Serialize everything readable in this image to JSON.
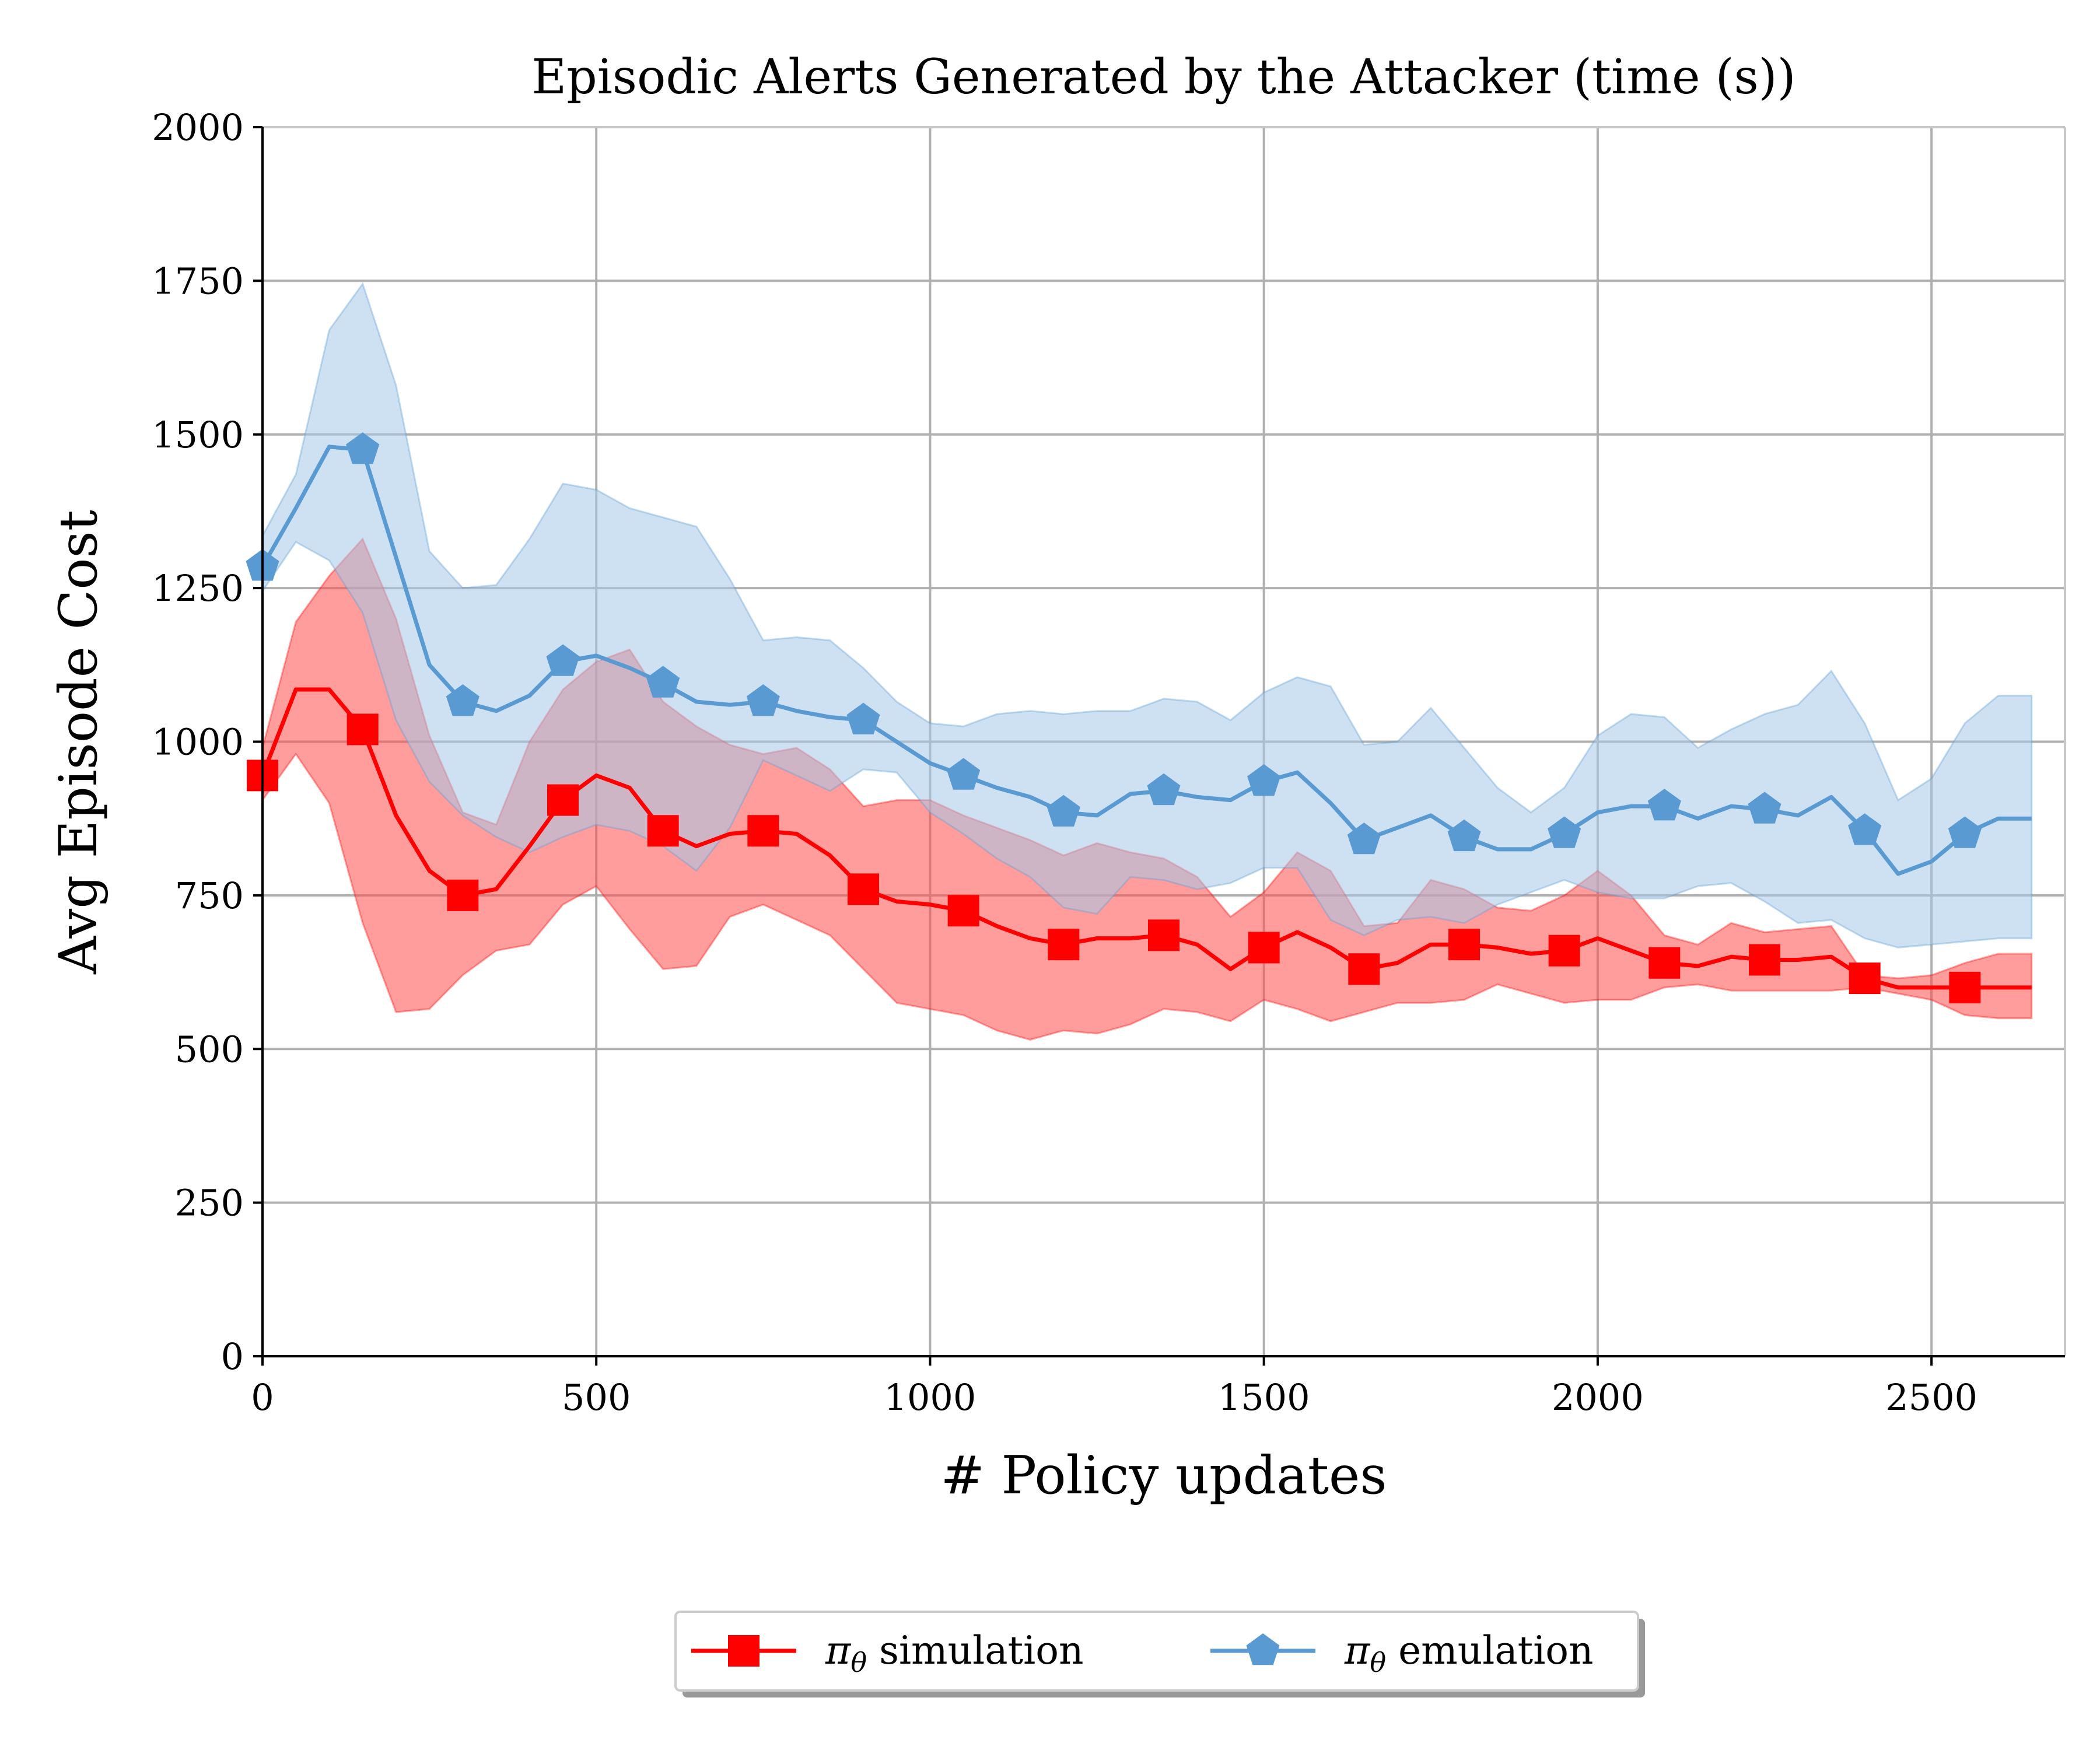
{
  "chart_data": {
    "type": "line",
    "title": "Episodic Alerts Generated by the Attacker (time (s))",
    "xlabel": "# Policy updates",
    "ylabel": "Avg Episode Cost",
    "xlim": [
      0,
      2700
    ],
    "ylim": [
      0,
      2000
    ],
    "x_ticks": [
      0,
      500,
      1000,
      1500,
      2000,
      2500
    ],
    "y_ticks": [
      0,
      250,
      500,
      750,
      1000,
      1250,
      1500,
      1750,
      2000
    ],
    "grid": true,
    "legend_position": "bottom-center",
    "x": [
      0,
      50,
      100,
      150,
      200,
      250,
      300,
      350,
      400,
      450,
      500,
      550,
      600,
      650,
      700,
      750,
      800,
      850,
      900,
      950,
      1000,
      1050,
      1100,
      1150,
      1200,
      1250,
      1300,
      1350,
      1400,
      1450,
      1500,
      1550,
      1600,
      1650,
      1700,
      1750,
      1800,
      1850,
      1900,
      1950,
      2000,
      2050,
      2100,
      2150,
      2200,
      2250,
      2300,
      2350,
      2400,
      2450,
      2500,
      2550,
      2600,
      2650
    ],
    "series": [
      {
        "name": "simulation",
        "legend_prefix": "π",
        "legend_subscript": "θ",
        "legend_suffix": " simulation",
        "color": "#ff0000",
        "band_color": "#ff4d4d",
        "marker": "square",
        "marker_every": 3,
        "mean": [
          945,
          1085,
          1085,
          1020,
          880,
          790,
          750,
          760,
          830,
          905,
          945,
          925,
          855,
          830,
          850,
          855,
          850,
          815,
          760,
          740,
          735,
          725,
          700,
          680,
          670,
          680,
          680,
          685,
          670,
          630,
          665,
          690,
          665,
          630,
          640,
          670,
          670,
          665,
          655,
          660,
          680,
          660,
          640,
          635,
          650,
          645,
          645,
          650,
          615,
          600,
          600,
          600,
          600,
          600
        ],
        "upper": [
          990,
          1195,
          1270,
          1330,
          1200,
          1010,
          885,
          865,
          1000,
          1085,
          1130,
          1150,
          1065,
          1025,
          995,
          980,
          990,
          955,
          895,
          905,
          905,
          880,
          860,
          840,
          815,
          835,
          820,
          810,
          780,
          715,
          755,
          820,
          790,
          700,
          705,
          775,
          760,
          730,
          725,
          750,
          790,
          750,
          685,
          670,
          705,
          690,
          695,
          700,
          620,
          615,
          620,
          640,
          655,
          655
        ],
        "lower": [
          905,
          980,
          900,
          705,
          560,
          565,
          620,
          660,
          670,
          735,
          765,
          695,
          630,
          635,
          715,
          735,
          710,
          685,
          630,
          575,
          565,
          555,
          530,
          515,
          530,
          525,
          540,
          565,
          560,
          545,
          580,
          565,
          545,
          560,
          575,
          575,
          580,
          605,
          590,
          575,
          580,
          580,
          600,
          605,
          595,
          595,
          595,
          595,
          600,
          590,
          580,
          555,
          550,
          550
        ]
      },
      {
        "name": "emulation",
        "legend_prefix": "π",
        "legend_subscript": "θ",
        "legend_suffix": " emulation",
        "color": "#599ad3",
        "band_color": "#a6c8e8",
        "marker": "pentagon",
        "marker_every": 3,
        "mean": [
          1285,
          1380,
          1480,
          1475,
          1300,
          1125,
          1065,
          1050,
          1075,
          1130,
          1140,
          1120,
          1095,
          1065,
          1060,
          1065,
          1050,
          1040,
          1035,
          1000,
          965,
          945,
          925,
          910,
          885,
          880,
          915,
          920,
          910,
          905,
          935,
          950,
          900,
          840,
          860,
          880,
          845,
          825,
          825,
          850,
          885,
          895,
          895,
          875,
          895,
          890,
          880,
          910,
          855,
          785,
          805,
          850,
          875,
          875
        ],
        "upper": [
          1335,
          1435,
          1670,
          1745,
          1580,
          1310,
          1250,
          1255,
          1330,
          1420,
          1410,
          1380,
          1365,
          1350,
          1265,
          1165,
          1170,
          1165,
          1120,
          1065,
          1030,
          1025,
          1045,
          1050,
          1045,
          1050,
          1050,
          1070,
          1065,
          1035,
          1080,
          1105,
          1090,
          995,
          1000,
          1055,
          990,
          925,
          885,
          925,
          1010,
          1045,
          1040,
          990,
          1020,
          1045,
          1060,
          1115,
          1030,
          905,
          940,
          1030,
          1075,
          1075
        ],
        "lower": [
          1245,
          1325,
          1295,
          1210,
          1035,
          935,
          880,
          845,
          820,
          845,
          865,
          855,
          830,
          790,
          860,
          970,
          945,
          920,
          955,
          950,
          885,
          850,
          810,
          780,
          730,
          720,
          780,
          775,
          760,
          770,
          795,
          795,
          710,
          685,
          710,
          715,
          705,
          735,
          755,
          775,
          755,
          745,
          745,
          765,
          770,
          740,
          705,
          710,
          680,
          665,
          670,
          675,
          680,
          680
        ]
      }
    ]
  }
}
